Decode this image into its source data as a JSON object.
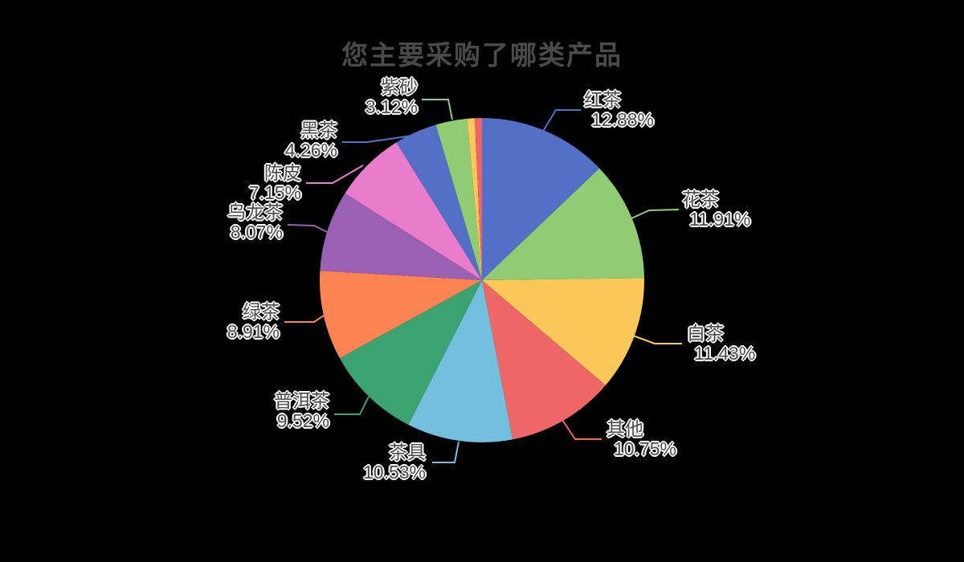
{
  "chart_data": {
    "type": "pie",
    "title": "您主要采购了哪类产品",
    "background": "#000000",
    "legend": "none",
    "grid": "off",
    "label_format": "{name}\n{percent}%",
    "percent_suffix": "%",
    "center": [
      600,
      349
    ],
    "radius": 202,
    "start_angle_deg": 0,
    "direction": "clockwise-from-top",
    "title_color": "#4a4a4a",
    "label_text_color": "#4c4c4c",
    "palette": [
      "#5470c6",
      "#91cc75",
      "#fac858",
      "#ee6666",
      "#73c0de",
      "#3ba272",
      "#fc8452",
      "#9a60b4",
      "#ea7ccc"
    ],
    "slices": [
      {
        "name": "红茶",
        "value": 12.88,
        "color": "#5470c6",
        "label_hidden": false
      },
      {
        "name": "花茶",
        "value": 11.91,
        "color": "#91cc75",
        "label_hidden": false
      },
      {
        "name": "白茶",
        "value": 11.43,
        "color": "#fac858",
        "label_hidden": false
      },
      {
        "name": "其他",
        "value": 10.75,
        "color": "#ee6666",
        "label_hidden": false
      },
      {
        "name": "茶具",
        "value": 10.53,
        "color": "#73c0de",
        "label_hidden": false
      },
      {
        "name": "普洱茶",
        "value": 9.52,
        "color": "#3ba272",
        "label_hidden": false
      },
      {
        "name": "绿茶",
        "value": 8.91,
        "color": "#fc8452",
        "label_hidden": false
      },
      {
        "name": "乌龙茶",
        "value": 8.07,
        "color": "#9a60b4",
        "label_hidden": false
      },
      {
        "name": "陈皮",
        "value": 7.15,
        "color": "#ea7ccc",
        "label_hidden": false
      },
      {
        "name": "黑茶",
        "value": 4.26,
        "color": "#5470c6",
        "label_hidden": false
      },
      {
        "name": "紫砂",
        "value": 3.12,
        "color": "#91cc75",
        "label_hidden": false
      },
      {
        "name": "",
        "value": 0.76,
        "color": "#fac858",
        "label_hidden": true
      },
      {
        "name": "",
        "value": 0.71,
        "color": "#ee6666",
        "label_hidden": true
      }
    ]
  }
}
